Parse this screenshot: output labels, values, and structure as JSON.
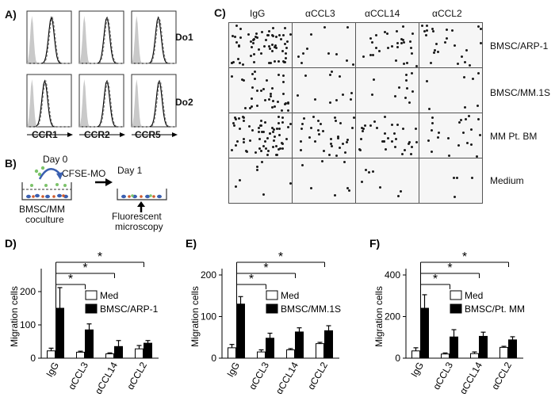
{
  "panels": {
    "A": {
      "label": "A)",
      "row_labels": [
        "Do1",
        "Do2"
      ],
      "col_labels": [
        "CCR1",
        "CCR2",
        "CCR5"
      ]
    },
    "B": {
      "label": "B)",
      "day0": "Day 0",
      "day1": "Day 1",
      "reagent": "CFSE-MO",
      "coculture": [
        "BMSC/MM",
        "coculture"
      ],
      "readout": [
        "Fluorescent",
        "microscopy"
      ]
    },
    "C": {
      "label": "C)",
      "col_labels": [
        "IgG",
        "αCCL3",
        "αCCL14",
        "αCCL2"
      ],
      "row_labels": [
        "BMSC/ARP-1",
        "BMSC/MM.1S",
        "MM Pt. BM",
        "Medium"
      ],
      "dot_density": [
        [
          0.9,
          0.15,
          0.4,
          0.35
        ],
        [
          0.5,
          0.15,
          0.15,
          0.1
        ],
        [
          0.9,
          0.45,
          0.45,
          0.3
        ],
        [
          0.1,
          0.1,
          0.1,
          0.05
        ]
      ]
    }
  },
  "chart_data": [
    {
      "panel": "D)",
      "type": "bar",
      "categories": [
        "IgG",
        "αCCL3",
        "αCCL14",
        "αCCL2"
      ],
      "ylabel": "Migration cells",
      "ylim": [
        0,
        250
      ],
      "yticks": [
        0,
        100,
        200
      ],
      "series": [
        {
          "name": "Med",
          "values": [
            22,
            18,
            13,
            28
          ],
          "errors": [
            8,
            3,
            3,
            10
          ],
          "color": "#ffffff"
        },
        {
          "name": "BMSC/ARP-1",
          "values": [
            150,
            85,
            35,
            45
          ],
          "errors": [
            62,
            18,
            18,
            8
          ],
          "color": "#000000"
        }
      ],
      "significance": [
        "*",
        "*",
        "*"
      ]
    },
    {
      "panel": "E)",
      "type": "bar",
      "categories": [
        "IgG",
        "αCCL3",
        "αCCL14",
        "αCCL2"
      ],
      "ylabel": "Migration cells",
      "ylim": [
        0,
        200
      ],
      "yticks": [
        0,
        100,
        200
      ],
      "series": [
        {
          "name": "Med",
          "values": [
            25,
            15,
            20,
            35
          ],
          "errors": [
            8,
            5,
            3,
            3
          ],
          "color": "#ffffff"
        },
        {
          "name": "BMSC/MM.1S",
          "values": [
            130,
            48,
            63,
            66
          ],
          "errors": [
            18,
            12,
            10,
            12
          ],
          "color": "#000000"
        }
      ],
      "significance": [
        "*",
        "*",
        "*"
      ]
    },
    {
      "panel": "F)",
      "type": "bar",
      "categories": [
        "IgG",
        "αCCL3",
        "αCCL14",
        "αCCL2"
      ],
      "ylabel": "Migration cells",
      "ylim": [
        0,
        400
      ],
      "yticks": [
        0,
        200,
        400
      ],
      "series": [
        {
          "name": "Med",
          "values": [
            35,
            20,
            22,
            52
          ],
          "errors": [
            15,
            5,
            8,
            5
          ],
          "color": "#ffffff"
        },
        {
          "name": "BMSC/Pt. MM",
          "values": [
            240,
            102,
            105,
            88
          ],
          "errors": [
            65,
            35,
            20,
            15
          ],
          "color": "#000000"
        }
      ],
      "significance": [
        "*",
        "*",
        "*"
      ]
    }
  ]
}
